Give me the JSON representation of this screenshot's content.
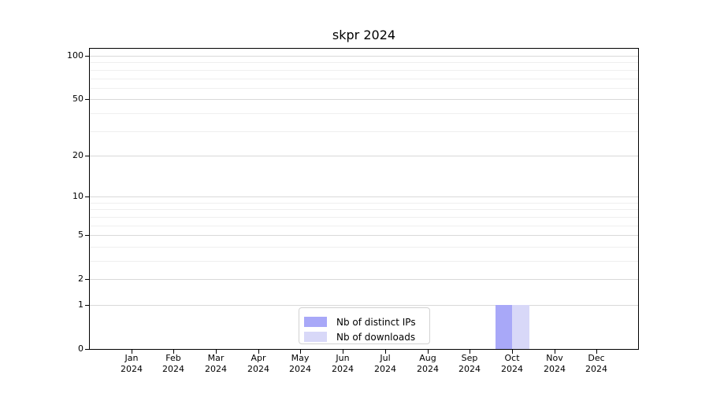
{
  "chart_data": {
    "type": "bar",
    "title": "skpr 2024",
    "categories": [
      "Jan",
      "Feb",
      "Mar",
      "Apr",
      "May",
      "Jun",
      "Jul",
      "Aug",
      "Sep",
      "Oct",
      "Nov",
      "Dec"
    ],
    "year": "2024",
    "series": [
      {
        "name": "Nb of distinct IPs",
        "color": "#a8a8f8",
        "values": [
          0,
          0,
          0,
          0,
          0,
          0,
          0,
          0,
          0,
          1,
          0,
          0
        ]
      },
      {
        "name": "Nb of downloads",
        "color": "#d8d8f8",
        "values": [
          0,
          0,
          0,
          0,
          0,
          0,
          0,
          0,
          0,
          1,
          0,
          0
        ]
      }
    ],
    "y_ticks": [
      0,
      1,
      2,
      5,
      10,
      20,
      50,
      100
    ],
    "y_minor_ticks": [
      3,
      4,
      6,
      7,
      8,
      9,
      30,
      40,
      60,
      70,
      80,
      90
    ],
    "y_scale": "log1p",
    "ylim": [
      0,
      112
    ],
    "xlabel": "",
    "ylabel": "",
    "grid": true,
    "legend_position": "lower-center-inside"
  },
  "colors": {
    "major_grid": "#d9d9d9",
    "minor_grid": "#efefef",
    "spine": "#000000",
    "legend_border": "#d2d2d2",
    "background": "#ffffff",
    "text": "#000000"
  }
}
